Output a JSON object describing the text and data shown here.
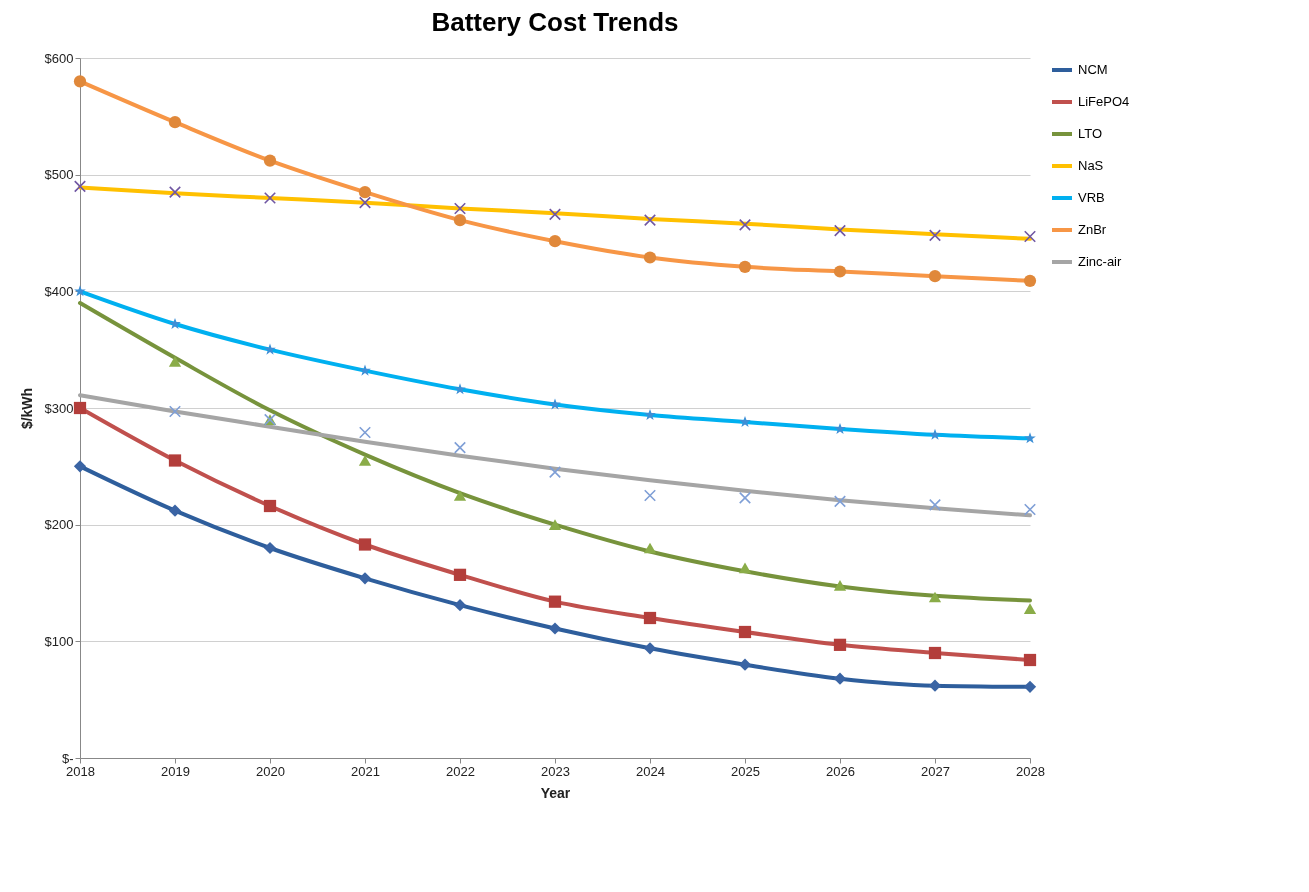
{
  "chart_data": {
    "type": "line",
    "title": "Battery Cost Trends",
    "xlabel": "Year",
    "ylabel": "$/kWh",
    "x": [
      2018,
      2019,
      2020,
      2021,
      2022,
      2023,
      2024,
      2025,
      2026,
      2027,
      2028
    ],
    "xlim": [
      2018,
      2028
    ],
    "xticks": [
      2018,
      2019,
      2020,
      2021,
      2022,
      2023,
      2024,
      2025,
      2026,
      2027,
      2028
    ],
    "ylim": [
      0,
      600
    ],
    "yticks": [
      {
        "value": 0,
        "label": "$-"
      },
      {
        "value": 100,
        "label": "$100"
      },
      {
        "value": 200,
        "label": "$200"
      },
      {
        "value": 300,
        "label": "$300"
      },
      {
        "value": 400,
        "label": "$400"
      },
      {
        "value": 500,
        "label": "$500"
      },
      {
        "value": 600,
        "label": "$600"
      }
    ],
    "grid": "y",
    "legend": "right",
    "series": [
      {
        "name": "NCM",
        "color": "#2e5e9c",
        "values": [
          250,
          212,
          180,
          154,
          131,
          111,
          94,
          80,
          68,
          62,
          61
        ]
      },
      {
        "name": "LiFePO4",
        "color": "#c0504d",
        "values": [
          300,
          255,
          216,
          183,
          157,
          134,
          120,
          108,
          97,
          90,
          84
        ]
      },
      {
        "name": "LTO",
        "color": "#77933c",
        "values": [
          390,
          343,
          298,
          260,
          227,
          200,
          177,
          160,
          147,
          139,
          135
        ]
      },
      {
        "name": "NaS",
        "color": "#ffc000",
        "values": [
          489,
          484,
          480,
          476,
          471,
          467,
          462,
          458,
          453,
          449,
          445
        ]
      },
      {
        "name": "VRB",
        "color": "#00b0f0",
        "values": [
          400,
          372,
          350,
          332,
          316,
          303,
          294,
          288,
          282,
          277,
          274
        ]
      },
      {
        "name": "ZnBr",
        "color": "#f79646",
        "values": [
          580,
          545,
          512,
          485,
          461,
          443,
          429,
          421,
          417,
          413,
          409
        ]
      },
      {
        "name": "Zinc-air",
        "color": "#a5a5a5",
        "values": [
          311,
          297,
          284,
          271,
          259,
          248,
          238,
          229,
          221,
          214,
          208
        ]
      },
      {
        "type": "scatter",
        "marker": "diamond",
        "color": "#3a64a4",
        "values": [
          250,
          212,
          180,
          154,
          131,
          111,
          94,
          80,
          68,
          62,
          61
        ]
      },
      {
        "type": "scatter",
        "marker": "square",
        "color": "#b33e3b",
        "values": [
          300,
          255,
          216,
          183,
          157,
          134,
          120,
          108,
          97,
          90,
          84
        ]
      },
      {
        "type": "scatter",
        "marker": "triangle",
        "color": "#8aac48",
        "values": [
          null,
          340,
          290,
          255,
          225,
          200,
          180,
          163,
          148,
          138,
          128
        ]
      },
      {
        "type": "scatter",
        "marker": "cross",
        "color": "#7057a3",
        "values": [
          490,
          485,
          480,
          476,
          471,
          466,
          461,
          457,
          452,
          448,
          447
        ]
      },
      {
        "type": "scatter",
        "marker": "star",
        "color": "#3d8fd6",
        "values": [
          400,
          372,
          350,
          332,
          316,
          303,
          294,
          288,
          282,
          277,
          274
        ]
      },
      {
        "type": "scatter",
        "marker": "circle",
        "color": "#e0883a",
        "values": [
          580,
          545,
          512,
          485,
          461,
          443,
          429,
          421,
          417,
          413,
          409
        ]
      },
      {
        "type": "scatter",
        "marker": "cross",
        "color": "#7f9fd6",
        "values": [
          null,
          297,
          290,
          279,
          266,
          245,
          225,
          223,
          220,
          217,
          213
        ]
      }
    ]
  }
}
